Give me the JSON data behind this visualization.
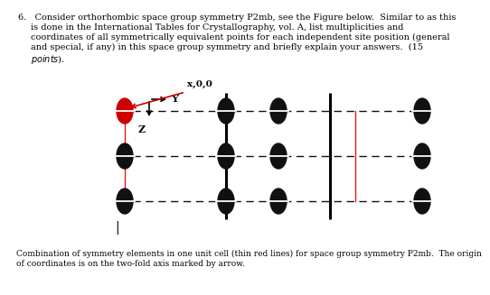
{
  "caption_text": "Combination of symmetry elements in one unit cell (thin red lines) for space group symmetry P2mb.  The origin\nof coordinates is on the two-fold axis marked by arrow.",
  "fig_bg": "#ffffff",
  "dashed_line_color": "#111111",
  "solid_line_color": "#000000",
  "red_line_color": "#ff0000",
  "dot_color": "#111111",
  "red_dot_color": "#cc0000",
  "label_y": "Y",
  "label_x00": "x,0,0",
  "label_z": "Z",
  "line1": "6.   Consider orthorhombic space group symmetry P2mb, see the Figure below.  Similar to as this",
  "line2": "is done in the International Tables for Crystallography, vol. A, list multiplicities and",
  "line3": "coordinates of all symmetrically equivalent points for each independent site position (general",
  "line4": "and special, if any) in this space group symmetry and briefly explain your answers.  (15",
  "line5": "points)."
}
